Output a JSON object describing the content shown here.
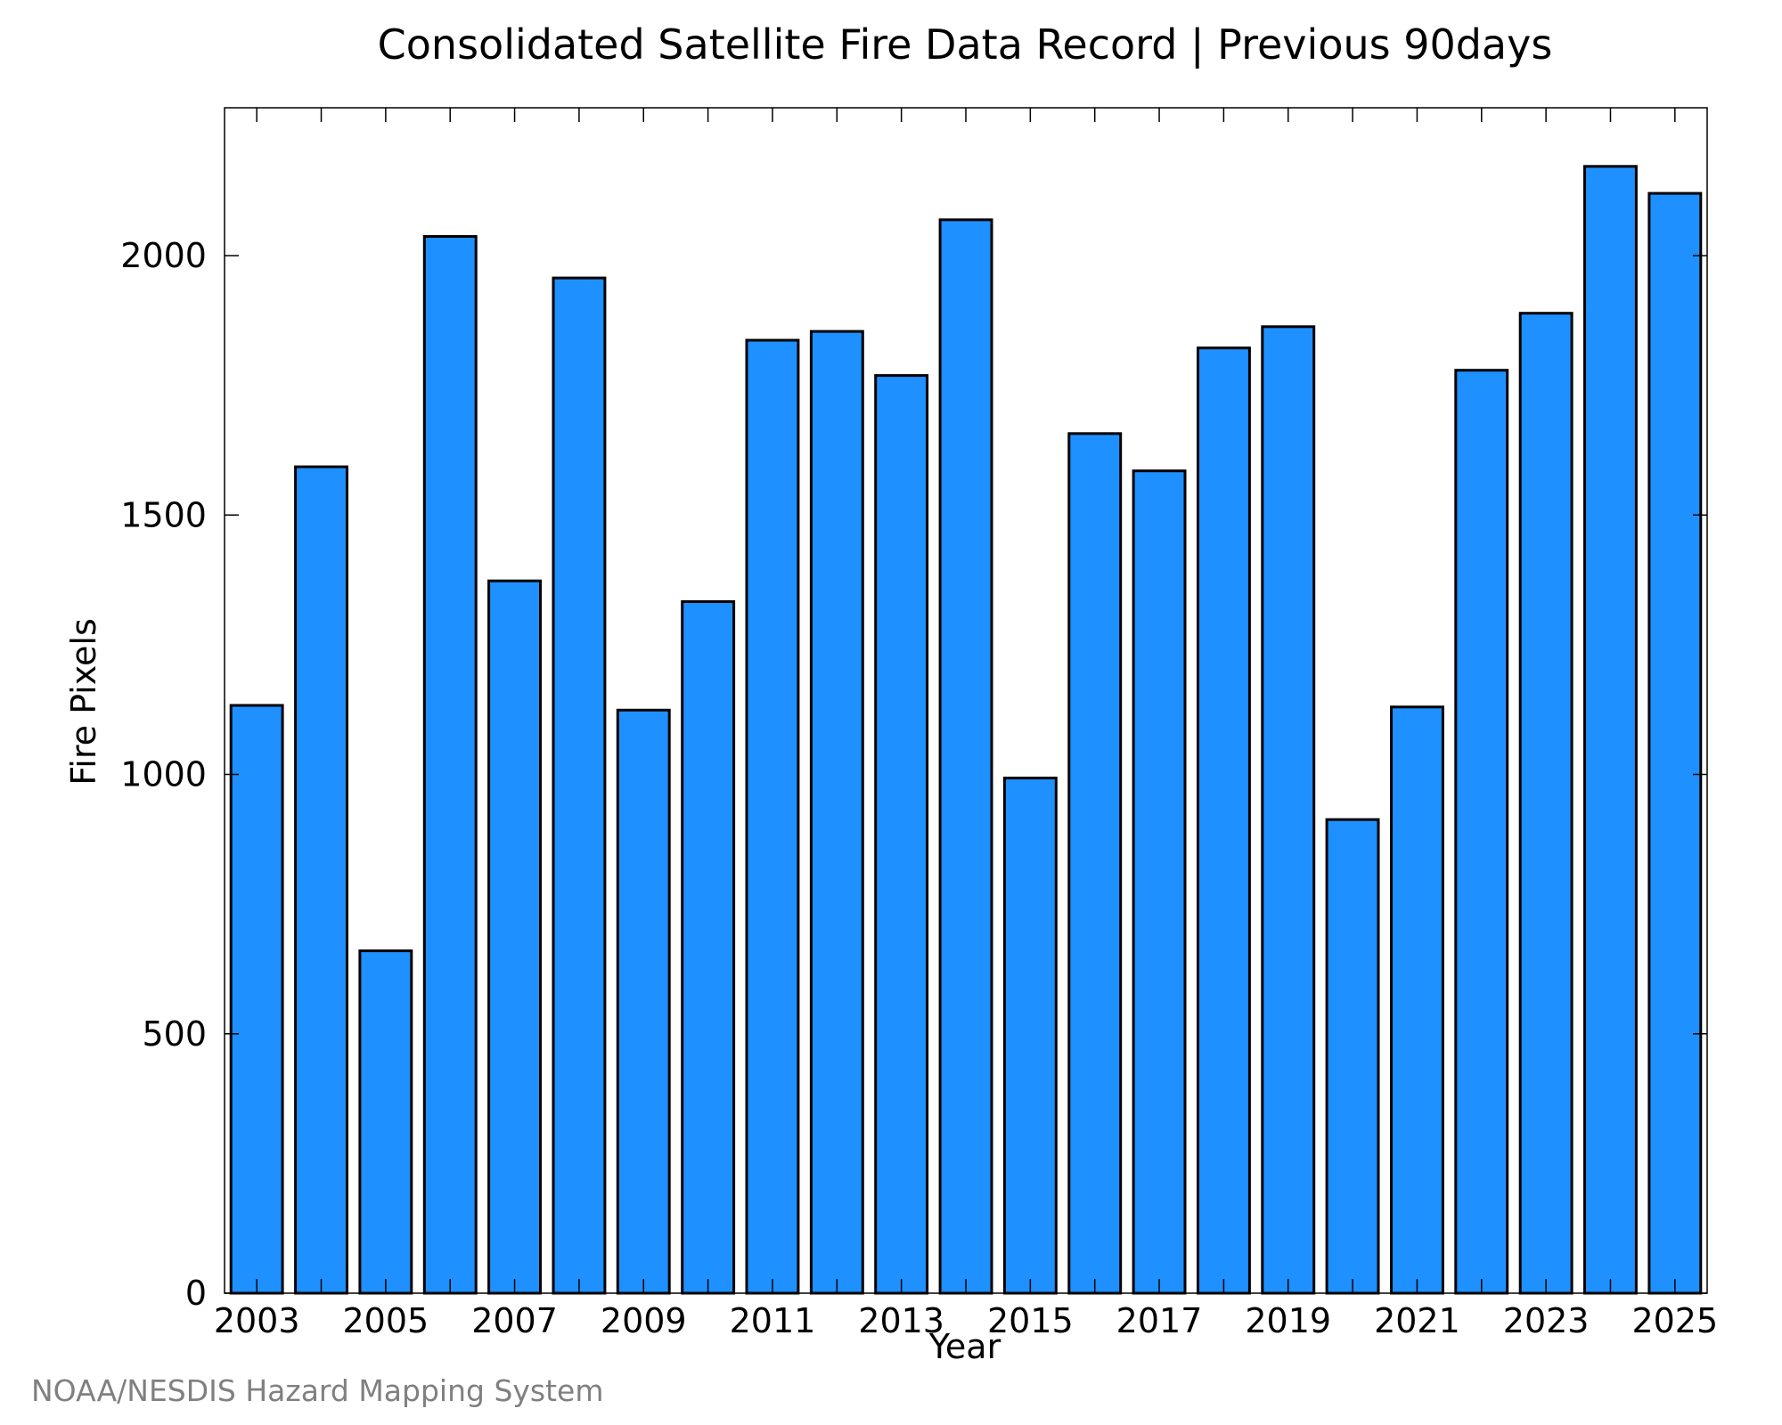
{
  "chart_data": {
    "type": "bar",
    "title": "Consolidated Satellite Fire Data Record | Previous 90days",
    "xlabel": "Year",
    "ylabel": "Fire Pixels",
    "categories": [
      "2003",
      "2004",
      "2005",
      "2006",
      "2007",
      "2008",
      "2009",
      "2010",
      "2011",
      "2012",
      "2013",
      "2014",
      "2015",
      "2016",
      "2017",
      "2018",
      "2019",
      "2020",
      "2021",
      "2022",
      "2023",
      "2024",
      "2025"
    ],
    "values": [
      1133,
      1593,
      660,
      2037,
      1373,
      1957,
      1124,
      1333,
      1837,
      1854,
      1769,
      2069,
      993,
      1657,
      1585,
      1822,
      1863,
      913,
      1130,
      1779,
      1889,
      2172,
      2120
    ],
    "x_tick_labels": [
      "2003",
      "2005",
      "2007",
      "2009",
      "2011",
      "2013",
      "2015",
      "2017",
      "2019",
      "2021",
      "2023",
      "2025"
    ],
    "y_ticks": [
      0,
      500,
      1000,
      1500,
      2000
    ],
    "ylim": [
      0,
      2285
    ],
    "grid": false,
    "bar_color": "#1e90ff",
    "bar_edge_color": "#000000"
  },
  "credit": "NOAA/NESDIS Hazard Mapping System"
}
